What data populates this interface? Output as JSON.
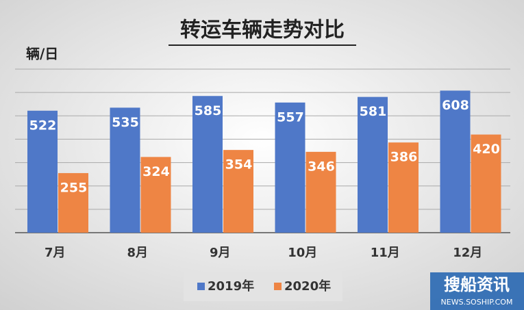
{
  "chart_data": {
    "type": "bar",
    "title": "转运车辆走势对比",
    "y_label": "辆/日",
    "categories": [
      "7月",
      "8月",
      "9月",
      "10月",
      "11月",
      "12月"
    ],
    "series": [
      {
        "name": "2019年",
        "color": "#4f78c8",
        "values": [
          522,
          535,
          585,
          557,
          581,
          608
        ]
      },
      {
        "name": "2020年",
        "color": "#ee8544",
        "values": [
          255,
          324,
          354,
          346,
          386,
          420
        ]
      }
    ],
    "ylim": [
      0,
      700
    ],
    "yticks": [
      0,
      100,
      200,
      300,
      400,
      500,
      600,
      700
    ],
    "grid": true,
    "legend": "bottom"
  },
  "watermark": {
    "brand": "搜船资讯",
    "url": "NEWS.SOSHIP.COM"
  }
}
